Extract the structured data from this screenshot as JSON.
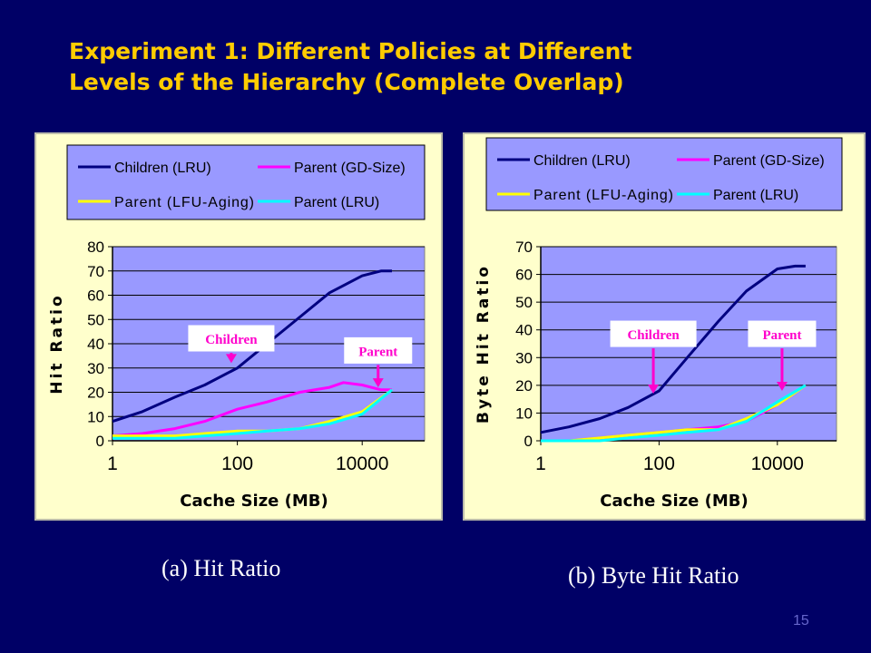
{
  "slide": {
    "title_line1": "Experiment 1: Different Policies at Different",
    "title_line2": "Levels of the Hierarchy (Complete Overlap)",
    "caption_a": "(a) Hit Ratio",
    "caption_b": "(b) Byte Hit Ratio",
    "page_number": "15"
  },
  "colors": {
    "background": "#000066",
    "title": "#FFCC00",
    "panel": "#FFFFCC",
    "plot_area": "#9999FF",
    "legend_bg": "#9999FF",
    "callout_text": "#FF00CC",
    "children_lru": "#000080",
    "parent_gdsize": "#FF00FF",
    "parent_lfu_aging": "#FFFF00",
    "parent_lru": "#00FFFF"
  },
  "chart_data": [
    {
      "type": "line",
      "xscale": "log",
      "xlabel": "Cache Size (MB)",
      "ylabel": "Hit Ratio",
      "xticks": [
        "1",
        "100",
        "10000"
      ],
      "xlim": [
        1,
        100000
      ],
      "ylim": [
        0,
        80
      ],
      "yticks": [
        "0",
        "10",
        "20",
        "30",
        "40",
        "50",
        "60",
        "70",
        "80"
      ],
      "grid": true,
      "legend_position": "top",
      "series": [
        {
          "name": "Children (LRU)",
          "color": "#000080",
          "x": [
            1,
            3,
            10,
            30,
            100,
            300,
            1000,
            3000,
            10000,
            20000,
            30000
          ],
          "y": [
            8,
            12,
            18,
            23,
            30,
            40,
            51,
            61,
            68,
            70,
            70
          ]
        },
        {
          "name": "Parent (GD-Size)",
          "color": "#FF00FF",
          "x": [
            1,
            3,
            10,
            30,
            100,
            300,
            1000,
            3000,
            5000,
            10000,
            20000,
            30000
          ],
          "y": [
            2,
            3,
            5,
            8,
            13,
            16,
            20,
            22,
            24,
            23,
            21,
            21
          ]
        },
        {
          "name": "Parent (LFU-Aging)",
          "color": "#FFFF00",
          "x": [
            1,
            3,
            10,
            30,
            100,
            300,
            1000,
            3000,
            10000,
            30000
          ],
          "y": [
            2,
            2,
            2,
            3,
            4,
            4,
            5,
            8,
            12,
            21
          ]
        },
        {
          "name": "Parent (LRU)",
          "color": "#00FFFF",
          "x": [
            1,
            3,
            10,
            30,
            100,
            300,
            1000,
            3000,
            10000,
            30000
          ],
          "y": [
            1,
            1,
            1,
            2,
            3,
            4,
            5,
            7,
            11,
            21
          ]
        }
      ],
      "annotations": [
        {
          "text": "Children",
          "x": 80,
          "y": 37,
          "arrow_to_y": 32
        },
        {
          "text": "Parent",
          "x": 18000,
          "y": 32,
          "arrow_to_y": 22
        }
      ]
    },
    {
      "type": "line",
      "xscale": "log",
      "xlabel": "Cache Size (MB)",
      "ylabel": "Byte Hit Ratio",
      "xticks": [
        "1",
        "100",
        "10000"
      ],
      "xlim": [
        1,
        100000
      ],
      "ylim": [
        0,
        70
      ],
      "yticks": [
        "0",
        "10",
        "20",
        "30",
        "40",
        "50",
        "60",
        "70"
      ],
      "grid": true,
      "legend_position": "top",
      "series": [
        {
          "name": "Children (LRU)",
          "color": "#000080",
          "x": [
            1,
            3,
            10,
            30,
            100,
            300,
            1000,
            3000,
            10000,
            20000,
            30000
          ],
          "y": [
            3,
            5,
            8,
            12,
            18,
            30,
            43,
            54,
            62,
            63,
            63
          ]
        },
        {
          "name": "Parent (GD-Size)",
          "color": "#FF00FF",
          "x": [
            1,
            3,
            10,
            30,
            100,
            300,
            1000,
            3000,
            10000,
            30000
          ],
          "y": [
            0,
            0,
            1,
            2,
            3,
            4,
            5,
            7,
            13,
            20
          ]
        },
        {
          "name": "Parent (LFU-Aging)",
          "color": "#FFFF00",
          "x": [
            1,
            3,
            10,
            30,
            100,
            300,
            1000,
            3000,
            10000,
            30000
          ],
          "y": [
            0,
            0,
            1,
            2,
            3,
            4,
            4,
            8,
            13,
            20
          ]
        },
        {
          "name": "Parent (LRU)",
          "color": "#00FFFF",
          "x": [
            1,
            3,
            10,
            30,
            100,
            300,
            1000,
            3000,
            10000,
            30000
          ],
          "y": [
            0,
            0,
            0,
            1,
            2,
            3,
            4,
            7,
            14,
            20
          ]
        }
      ],
      "annotations": [
        {
          "text": "Children",
          "x": 80,
          "y": 34,
          "arrow_to_y": 17
        },
        {
          "text": "Parent",
          "x": 12000,
          "y": 34,
          "arrow_to_y": 18
        }
      ]
    }
  ]
}
